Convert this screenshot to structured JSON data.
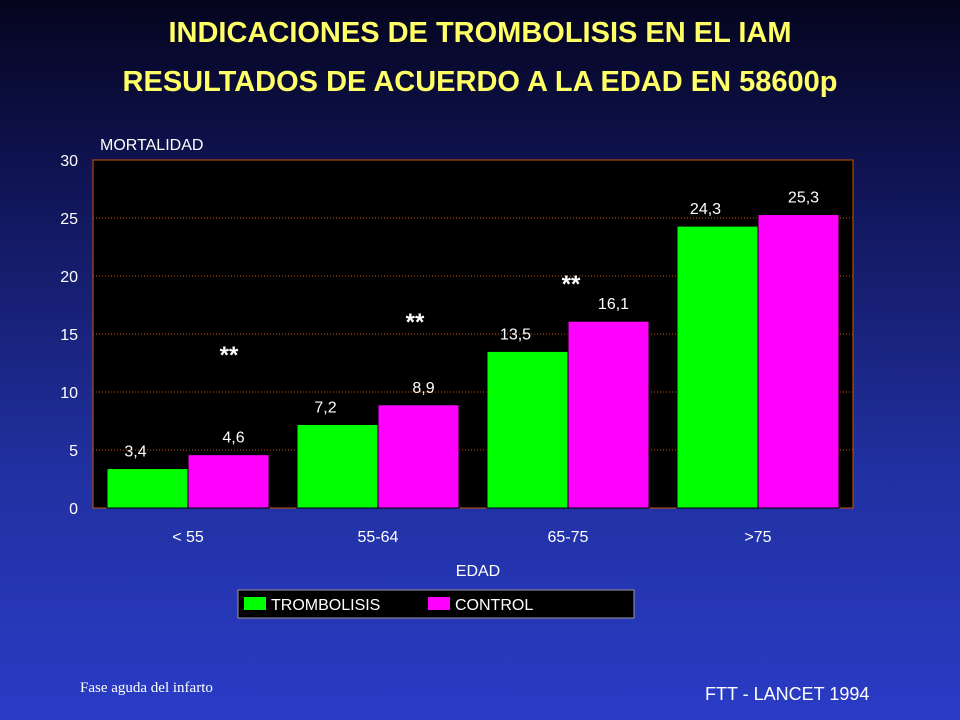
{
  "slide": {
    "title": "INDICACIONES DE TROMBOLISIS EN EL IAM",
    "subtitle": "RESULTADOS DE ACUERDO A LA EDAD EN 58600p",
    "footer_note": "Fase aguda del infarto",
    "source": "FTT - LANCET 1994"
  },
  "chart_data": {
    "type": "bar",
    "ylabel": "MORTALIDAD",
    "xlabel": "EDAD",
    "categories": [
      "< 55",
      "55-64",
      "65-75",
      ">75"
    ],
    "ylim": [
      0,
      30
    ],
    "yticks": [
      0,
      5,
      10,
      15,
      20,
      25,
      30
    ],
    "series": [
      {
        "name": "TROMBOLISIS",
        "color": "#00ff00",
        "values": [
          3.4,
          7.2,
          13.5,
          24.3
        ],
        "labels": [
          "3,4",
          "7,2",
          "13,5",
          "24,3"
        ]
      },
      {
        "name": "CONTROL",
        "color": "#ff00ff",
        "values": [
          4.6,
          8.9,
          16.1,
          25.3
        ],
        "labels": [
          "4,6",
          "8,9",
          "16,1",
          "25,3"
        ]
      }
    ],
    "significance_marker": "**",
    "significance_groups": [
      0,
      1,
      2
    ],
    "grid": true,
    "legend": "bottom",
    "plot_background": "#000000",
    "grid_color": "#cc5500"
  }
}
